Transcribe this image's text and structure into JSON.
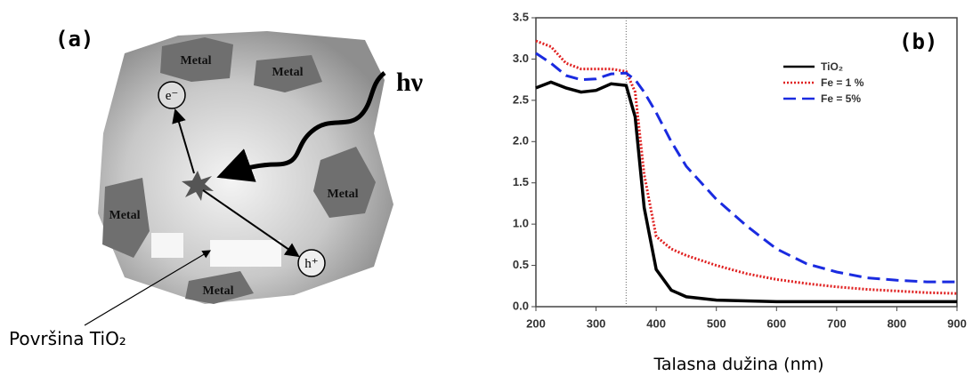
{
  "diagram": {
    "panel_label": "(a)",
    "metal_labels": [
      "Metal",
      "Metal",
      "Metal",
      "Metal",
      "Metal"
    ],
    "electron": "e⁻",
    "hole": "h⁺",
    "photon": "hν",
    "surface_label": "Površina TiO₂"
  },
  "chart_data": {
    "type": "line",
    "panel_label": "(b)",
    "x_label": "Talasna dužina (nm)",
    "x": [
      200,
      225,
      250,
      275,
      300,
      325,
      350,
      365,
      380,
      400,
      425,
      450,
      500,
      550,
      600,
      650,
      700,
      750,
      800,
      850,
      900
    ],
    "series": [
      {
        "name": "TiO₂",
        "color": "#000000",
        "style": "solid",
        "values": [
          2.65,
          2.72,
          2.65,
          2.6,
          2.62,
          2.7,
          2.68,
          2.3,
          1.2,
          0.45,
          0.2,
          0.12,
          0.08,
          0.07,
          0.06,
          0.06,
          0.06,
          0.06,
          0.06,
          0.06,
          0.06
        ]
      },
      {
        "name": "Fe = 1 %",
        "color": "#e02020",
        "style": "dotted",
        "values": [
          3.22,
          3.15,
          2.95,
          2.88,
          2.88,
          2.88,
          2.85,
          2.6,
          1.6,
          0.85,
          0.7,
          0.62,
          0.5,
          0.4,
          0.33,
          0.28,
          0.24,
          0.21,
          0.19,
          0.17,
          0.16
        ]
      },
      {
        "name": "Fe = 5%",
        "color": "#1a2be0",
        "style": "dashed",
        "values": [
          3.07,
          2.95,
          2.8,
          2.75,
          2.76,
          2.82,
          2.83,
          2.75,
          2.6,
          2.35,
          2.0,
          1.7,
          1.3,
          0.98,
          0.7,
          0.52,
          0.42,
          0.35,
          0.32,
          0.3,
          0.3
        ]
      }
    ],
    "vline": 350,
    "xlim": [
      200,
      900
    ],
    "xticks": [
      200,
      300,
      400,
      500,
      600,
      700,
      800,
      900
    ],
    "ylim": [
      0,
      3.5
    ],
    "yticks": [
      {
        "value": 0,
        "label": "0.0"
      },
      0.5,
      {
        "value": 1,
        "label": "1.0"
      },
      1.5,
      {
        "value": 2,
        "label": "2.0"
      },
      2.5,
      {
        "value": 3,
        "label": "3.0"
      },
      3.5
    ]
  }
}
